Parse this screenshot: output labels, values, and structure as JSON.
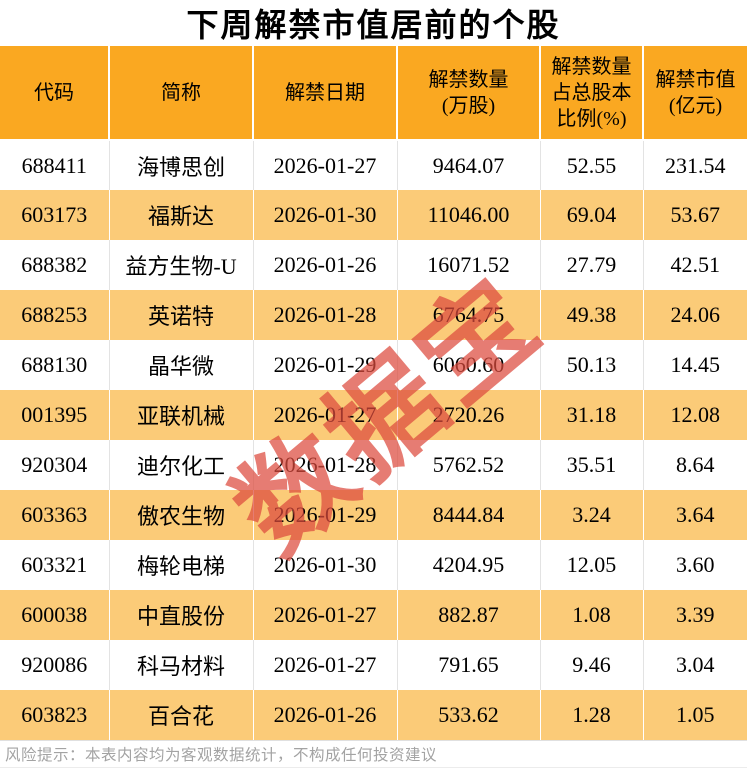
{
  "title": "下周解禁市值居前的个股",
  "watermark": "数据宝",
  "chart_data": {
    "type": "table",
    "title": "下周解禁市值居前的个股",
    "columns": [
      "代码",
      "简称",
      "解禁日期",
      "解禁数量(万股)",
      "解禁数量占总股本比例(%)",
      "解禁市值(亿元)"
    ],
    "header_display": [
      "代码",
      "简称",
      "解禁日期",
      "解禁数量\n(万股)",
      "解禁数量\n占总股本\n比例(%)",
      "解禁市值\n(亿元)"
    ],
    "rows": [
      [
        "688411",
        "海博思创",
        "2026-01-27",
        "9464.07",
        "52.55",
        "231.54"
      ],
      [
        "603173",
        "福斯达",
        "2026-01-30",
        "11046.00",
        "69.04",
        "53.67"
      ],
      [
        "688382",
        "益方生物-U",
        "2026-01-26",
        "16071.52",
        "27.79",
        "42.51"
      ],
      [
        "688253",
        "英诺特",
        "2026-01-28",
        "6764.75",
        "49.38",
        "24.06"
      ],
      [
        "688130",
        "晶华微",
        "2026-01-29",
        "6060.60",
        "50.13",
        "14.45"
      ],
      [
        "001395",
        "亚联机械",
        "2026-01-27",
        "2720.26",
        "31.18",
        "12.08"
      ],
      [
        "920304",
        "迪尔化工",
        "2026-01-28",
        "5762.52",
        "35.51",
        "8.64"
      ],
      [
        "603363",
        "傲农生物",
        "2026-01-29",
        "8444.84",
        "3.24",
        "3.64"
      ],
      [
        "603321",
        "梅轮电梯",
        "2026-01-30",
        "4204.95",
        "12.05",
        "3.60"
      ],
      [
        "600038",
        "中直股份",
        "2026-01-27",
        "882.87",
        "1.08",
        "3.39"
      ],
      [
        "920086",
        "科马材料",
        "2026-01-27",
        "791.65",
        "9.46",
        "3.04"
      ],
      [
        "603823",
        "百合花",
        "2026-01-26",
        "533.62",
        "1.28",
        "1.05"
      ]
    ]
  },
  "footer": {
    "note": "风险提示：本表内容均为客观数据统计，不构成任何投资建议"
  },
  "colors": {
    "header_bg": "#FAA821",
    "row_alt_bg": "#FBCB78",
    "watermark_red": "#DD4B3E",
    "text": "#000000",
    "footer_text": "#A3A3A3"
  }
}
